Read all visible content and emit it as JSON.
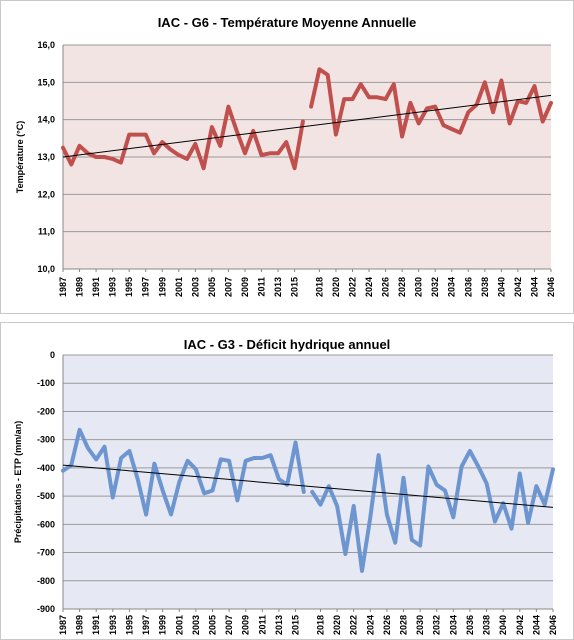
{
  "chart_data": [
    {
      "type": "line",
      "title": "IAC - G6 - Température Moyenne Annuelle",
      "xlabel": "",
      "ylabel": "Température (°C)",
      "ylim": [
        10,
        16
      ],
      "yticks": [
        10,
        11,
        12,
        13,
        14,
        15,
        16
      ],
      "ytick_labels": [
        "10,0",
        "11,0",
        "12,0",
        "13,0",
        "14,0",
        "15,0",
        "16,0"
      ],
      "xlim": [
        1987,
        2046
      ],
      "xtick_labels": [
        "1987",
        "1989",
        "1991",
        "1993",
        "1995",
        "1997",
        "1999",
        "2001",
        "2003",
        "2005",
        "2007",
        "2009",
        "2011",
        "2013",
        "2015",
        "2018",
        "2020",
        "2022",
        "2024",
        "2026",
        "2028",
        "2030",
        "2032",
        "2034",
        "2036",
        "2038",
        "2040",
        "2042",
        "2044",
        "2046"
      ],
      "background": "#f3e4e4",
      "line_color": "#c0504d",
      "grid": true,
      "series": [
        {
          "x": [
            1987,
            1988,
            1989,
            1990,
            1991,
            1992,
            1993,
            1994,
            1995,
            1996,
            1997,
            1998,
            1999,
            2000,
            2001,
            2002,
            2003,
            2004,
            2005,
            2006,
            2007,
            2008,
            2009,
            2010,
            2011,
            2012,
            2013,
            2014,
            2015,
            2016
          ],
          "values": [
            13.25,
            12.8,
            13.3,
            13.1,
            13.0,
            13.0,
            12.95,
            12.85,
            13.6,
            13.6,
            13.6,
            13.1,
            13.4,
            13.2,
            13.05,
            12.95,
            13.35,
            12.7,
            13.8,
            13.3,
            14.35,
            13.7,
            13.1,
            13.7,
            13.05,
            13.1,
            13.1,
            13.4,
            12.7,
            13.95
          ]
        },
        {
          "x": [
            2017,
            2018,
            2019,
            2020,
            2021,
            2022,
            2023,
            2024,
            2025,
            2026,
            2027,
            2028,
            2029,
            2030,
            2031,
            2032,
            2033,
            2034,
            2035,
            2036,
            2037,
            2038,
            2039,
            2040,
            2041,
            2042,
            2043,
            2044,
            2045,
            2046
          ],
          "values": [
            14.35,
            15.35,
            15.2,
            13.6,
            14.55,
            14.55,
            14.95,
            14.6,
            14.6,
            14.55,
            14.95,
            13.55,
            14.45,
            13.9,
            14.3,
            14.35,
            13.85,
            13.75,
            13.65,
            14.2,
            14.4,
            15.0,
            14.2,
            15.05,
            13.9,
            14.5,
            14.45,
            14.9,
            13.95,
            14.45
          ]
        }
      ],
      "trend": {
        "x": [
          1987,
          2046
        ],
        "values": [
          13.0,
          14.65
        ]
      }
    },
    {
      "type": "line",
      "title": "IAC - G3 - Déficit hydrique annuel",
      "xlabel": "",
      "ylabel": "Précipitations - ETP (mm/an)",
      "ylim": [
        -900,
        0
      ],
      "yticks": [
        -900,
        -800,
        -700,
        -600,
        -500,
        -400,
        -300,
        -200,
        -100,
        0
      ],
      "ytick_labels": [
        "-900",
        "-800",
        "-700",
        "-600",
        "-500",
        "-400",
        "-300",
        "-200",
        "-100",
        "0"
      ],
      "xlim": [
        1987,
        2046
      ],
      "xtick_labels": [
        "1987",
        "1989",
        "1991",
        "1993",
        "1995",
        "1997",
        "1999",
        "2001",
        "2003",
        "2005",
        "2007",
        "2009",
        "2011",
        "2013",
        "2015",
        "2018",
        "2020",
        "2022",
        "2024",
        "2026",
        "2028",
        "2030",
        "2032",
        "2034",
        "2036",
        "2038",
        "2040",
        "2042",
        "2044",
        "2046"
      ],
      "background": "#e6e8f3",
      "line_color": "#6d95d0",
      "grid": true,
      "series": [
        {
          "x": [
            1987,
            1988,
            1989,
            1990,
            1991,
            1992,
            1993,
            1994,
            1995,
            1996,
            1997,
            1998,
            1999,
            2000,
            2001,
            2002,
            2003,
            2004,
            2005,
            2006,
            2007,
            2008,
            2009,
            2010,
            2011,
            2012,
            2013,
            2014,
            2015,
            2016
          ],
          "values": [
            -410,
            -390,
            -265,
            -330,
            -370,
            -325,
            -505,
            -365,
            -340,
            -440,
            -565,
            -385,
            -480,
            -565,
            -450,
            -375,
            -405,
            -490,
            -480,
            -370,
            -375,
            -515,
            -375,
            -365,
            -365,
            -355,
            -440,
            -460,
            -310,
            -485
          ]
        },
        {
          "x": [
            2017,
            2018,
            2019,
            2020,
            2021,
            2022,
            2023,
            2024,
            2025,
            2026,
            2027,
            2028,
            2029,
            2030,
            2031,
            2032,
            2033,
            2034,
            2035,
            2036,
            2037,
            2038,
            2039,
            2040,
            2041,
            2042,
            2043,
            2044,
            2045,
            2046
          ],
          "values": [
            -485,
            -530,
            -465,
            -535,
            -705,
            -535,
            -765,
            -575,
            -355,
            -565,
            -665,
            -435,
            -655,
            -675,
            -395,
            -460,
            -480,
            -575,
            -395,
            -340,
            -395,
            -455,
            -590,
            -525,
            -615,
            -420,
            -595,
            -465,
            -530,
            -405
          ]
        }
      ],
      "trend": {
        "x": [
          1987,
          2046
        ],
        "values": [
          -390,
          -540
        ]
      }
    }
  ]
}
